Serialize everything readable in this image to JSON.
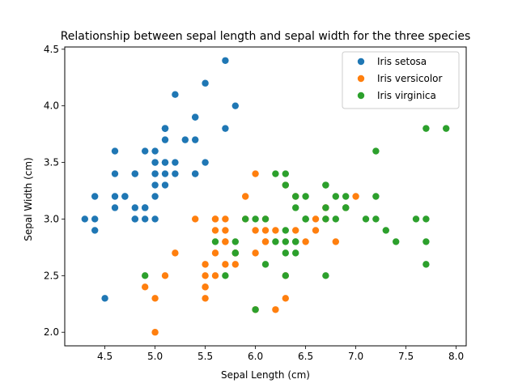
{
  "chart_data": {
    "type": "scatter",
    "title": "Relationship between sepal length and sepal width for the three species",
    "xlabel": "Sepal Length (cm)",
    "ylabel": "Sepal Width (cm)",
    "xlim": [
      4.1,
      8.1
    ],
    "ylim": [
      1.88,
      4.52
    ],
    "x_ticks": [
      4.5,
      5.0,
      5.5,
      6.0,
      6.5,
      7.0,
      7.5,
      8.0
    ],
    "x_tick_labels": [
      "4.5",
      "5.0",
      "5.5",
      "6.0",
      "6.5",
      "7.0",
      "7.5",
      "8.0"
    ],
    "y_ticks": [
      2.0,
      2.5,
      3.0,
      3.5,
      4.0,
      4.5
    ],
    "y_tick_labels": [
      "2.0",
      "2.5",
      "3.0",
      "3.5",
      "4.0",
      "4.5"
    ],
    "grid": false,
    "legend_position": "top-right",
    "series": [
      {
        "name": "Iris setosa",
        "color": "#1f77b4",
        "x": [
          5.1,
          4.9,
          4.7,
          4.6,
          5.0,
          5.4,
          4.6,
          5.0,
          4.4,
          4.9,
          5.4,
          4.8,
          4.8,
          4.3,
          5.8,
          5.7,
          5.4,
          5.1,
          5.7,
          5.1,
          5.4,
          5.1,
          4.6,
          5.1,
          4.8,
          5.0,
          5.0,
          5.2,
          5.2,
          4.7,
          4.8,
          5.4,
          5.2,
          5.5,
          4.9,
          5.0,
          5.5,
          4.9,
          4.4,
          5.1,
          5.0,
          4.5,
          4.4,
          5.0,
          5.1,
          4.8,
          5.1,
          4.6,
          5.3,
          5.0
        ],
        "y": [
          3.5,
          3.0,
          3.2,
          3.1,
          3.6,
          3.9,
          3.4,
          3.4,
          2.9,
          3.1,
          3.7,
          3.4,
          3.0,
          3.0,
          4.0,
          4.4,
          3.9,
          3.5,
          3.8,
          3.8,
          3.4,
          3.7,
          3.6,
          3.3,
          3.4,
          3.0,
          3.4,
          3.5,
          3.4,
          3.2,
          3.1,
          3.4,
          4.1,
          4.2,
          3.1,
          3.2,
          3.5,
          3.6,
          3.0,
          3.4,
          3.5,
          2.3,
          3.2,
          3.5,
          3.8,
          3.0,
          3.8,
          3.2,
          3.7,
          3.3
        ]
      },
      {
        "name": "Iris versicolor",
        "color": "#ff7f0e",
        "x": [
          7.0,
          6.4,
          6.9,
          5.5,
          6.5,
          5.7,
          6.3,
          4.9,
          6.6,
          5.2,
          5.0,
          5.9,
          6.0,
          6.1,
          5.6,
          6.7,
          5.6,
          5.8,
          6.2,
          5.6,
          5.9,
          6.1,
          6.3,
          6.1,
          6.4,
          6.6,
          6.8,
          6.7,
          6.0,
          5.7,
          5.5,
          5.5,
          5.8,
          6.0,
          5.4,
          6.0,
          6.7,
          6.3,
          5.6,
          5.5,
          5.5,
          6.1,
          5.8,
          5.0,
          5.6,
          5.7,
          5.7,
          6.2,
          5.1,
          5.7
        ],
        "y": [
          3.2,
          3.2,
          3.1,
          2.3,
          2.8,
          2.8,
          3.3,
          2.4,
          2.9,
          2.7,
          2.0,
          3.0,
          2.2,
          2.9,
          2.9,
          3.1,
          3.0,
          2.7,
          2.2,
          2.5,
          3.2,
          2.8,
          2.5,
          2.8,
          2.9,
          3.0,
          2.8,
          3.0,
          2.9,
          2.6,
          2.4,
          2.4,
          2.7,
          2.7,
          3.0,
          3.4,
          3.1,
          2.3,
          3.0,
          2.5,
          2.6,
          3.0,
          2.6,
          2.3,
          2.7,
          3.0,
          2.9,
          2.9,
          2.5,
          2.8
        ]
      },
      {
        "name": "Iris virginica",
        "color": "#2ca02c",
        "x": [
          6.3,
          5.8,
          7.1,
          6.3,
          6.5,
          7.6,
          4.9,
          7.3,
          6.7,
          7.2,
          6.5,
          6.4,
          6.8,
          5.7,
          5.8,
          6.4,
          6.5,
          7.7,
          7.7,
          6.0,
          6.9,
          5.6,
          7.7,
          6.3,
          6.7,
          7.2,
          6.2,
          6.1,
          6.4,
          7.2,
          7.4,
          7.9,
          6.4,
          6.3,
          6.1,
          7.7,
          6.3,
          6.4,
          6.0,
          6.9,
          6.7,
          6.9,
          5.8,
          6.8,
          6.7,
          6.7,
          6.3,
          6.5,
          6.2,
          5.9
        ],
        "y": [
          3.3,
          2.7,
          3.0,
          2.9,
          3.0,
          3.0,
          2.5,
          2.9,
          2.5,
          3.6,
          3.2,
          2.7,
          3.0,
          2.5,
          2.8,
          3.2,
          3.0,
          3.8,
          2.6,
          2.2,
          3.2,
          2.8,
          2.8,
          2.7,
          3.3,
          3.2,
          2.8,
          3.0,
          2.8,
          3.0,
          2.8,
          3.8,
          2.8,
          2.8,
          2.6,
          3.0,
          3.4,
          3.1,
          3.0,
          3.1,
          3.1,
          3.1,
          2.7,
          3.2,
          3.3,
          3.0,
          2.5,
          3.0,
          3.4,
          3.0
        ]
      }
    ]
  }
}
